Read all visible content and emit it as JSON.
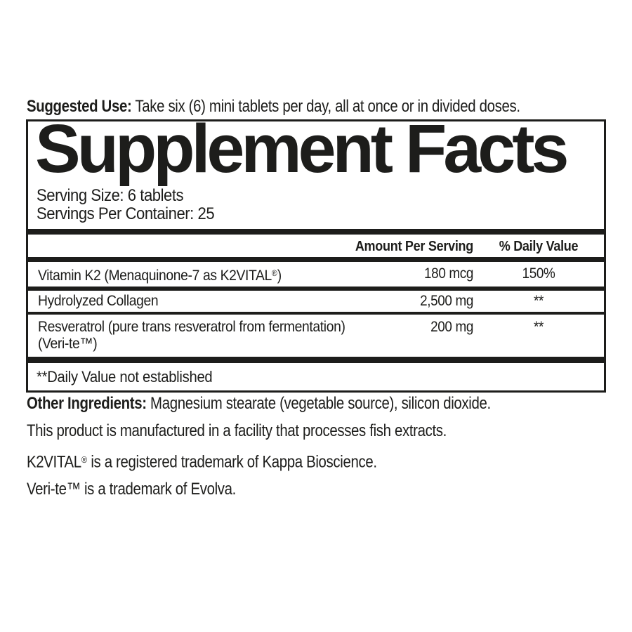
{
  "colors": {
    "ink": "#1d1d1b",
    "background": "#ffffff"
  },
  "suggested_use": {
    "label": "Suggested Use:",
    "text": "Take six (6) mini tablets per day, all at once or in divided doses."
  },
  "panel": {
    "title": "Supplement Facts",
    "serving_size": "Serving Size: 6 tablets",
    "servings_per_container": "Servings Per Container: 25",
    "header": {
      "amount": "Amount Per Serving",
      "daily_value": "% Daily Value"
    },
    "rows": [
      {
        "name_pre": "Vitamin K2 (Menaquinone-7 as K2VITAL",
        "name_sup": "®",
        "name_post": ")",
        "name_line2": "",
        "amount": "180 mcg",
        "daily_value": "150%"
      },
      {
        "name_pre": "Hydrolyzed Collagen",
        "name_sup": "",
        "name_post": "",
        "name_line2": "",
        "amount": "2,500 mg",
        "daily_value": "**"
      },
      {
        "name_pre": "Resveratrol (pure trans resveratrol from fermentation)",
        "name_sup": "",
        "name_post": "",
        "name_line2": "(Veri-te™)",
        "amount": "200 mg",
        "daily_value": "**"
      }
    ],
    "footnote": "**Daily Value not established"
  },
  "notes": {
    "other_ingredients_label": "Other Ingredients:",
    "other_ingredients_text": "Magnesium stearate (vegetable source), silicon dioxide.",
    "facility": "This product is manufactured in a facility that processes fish extracts.",
    "k2vital_pre": "K2VITAL",
    "k2vital_sup": "®",
    "k2vital_post": "is a registered trademark of Kappa Bioscience.",
    "verite": "Veri-te™ is a trademark of Evolva."
  }
}
